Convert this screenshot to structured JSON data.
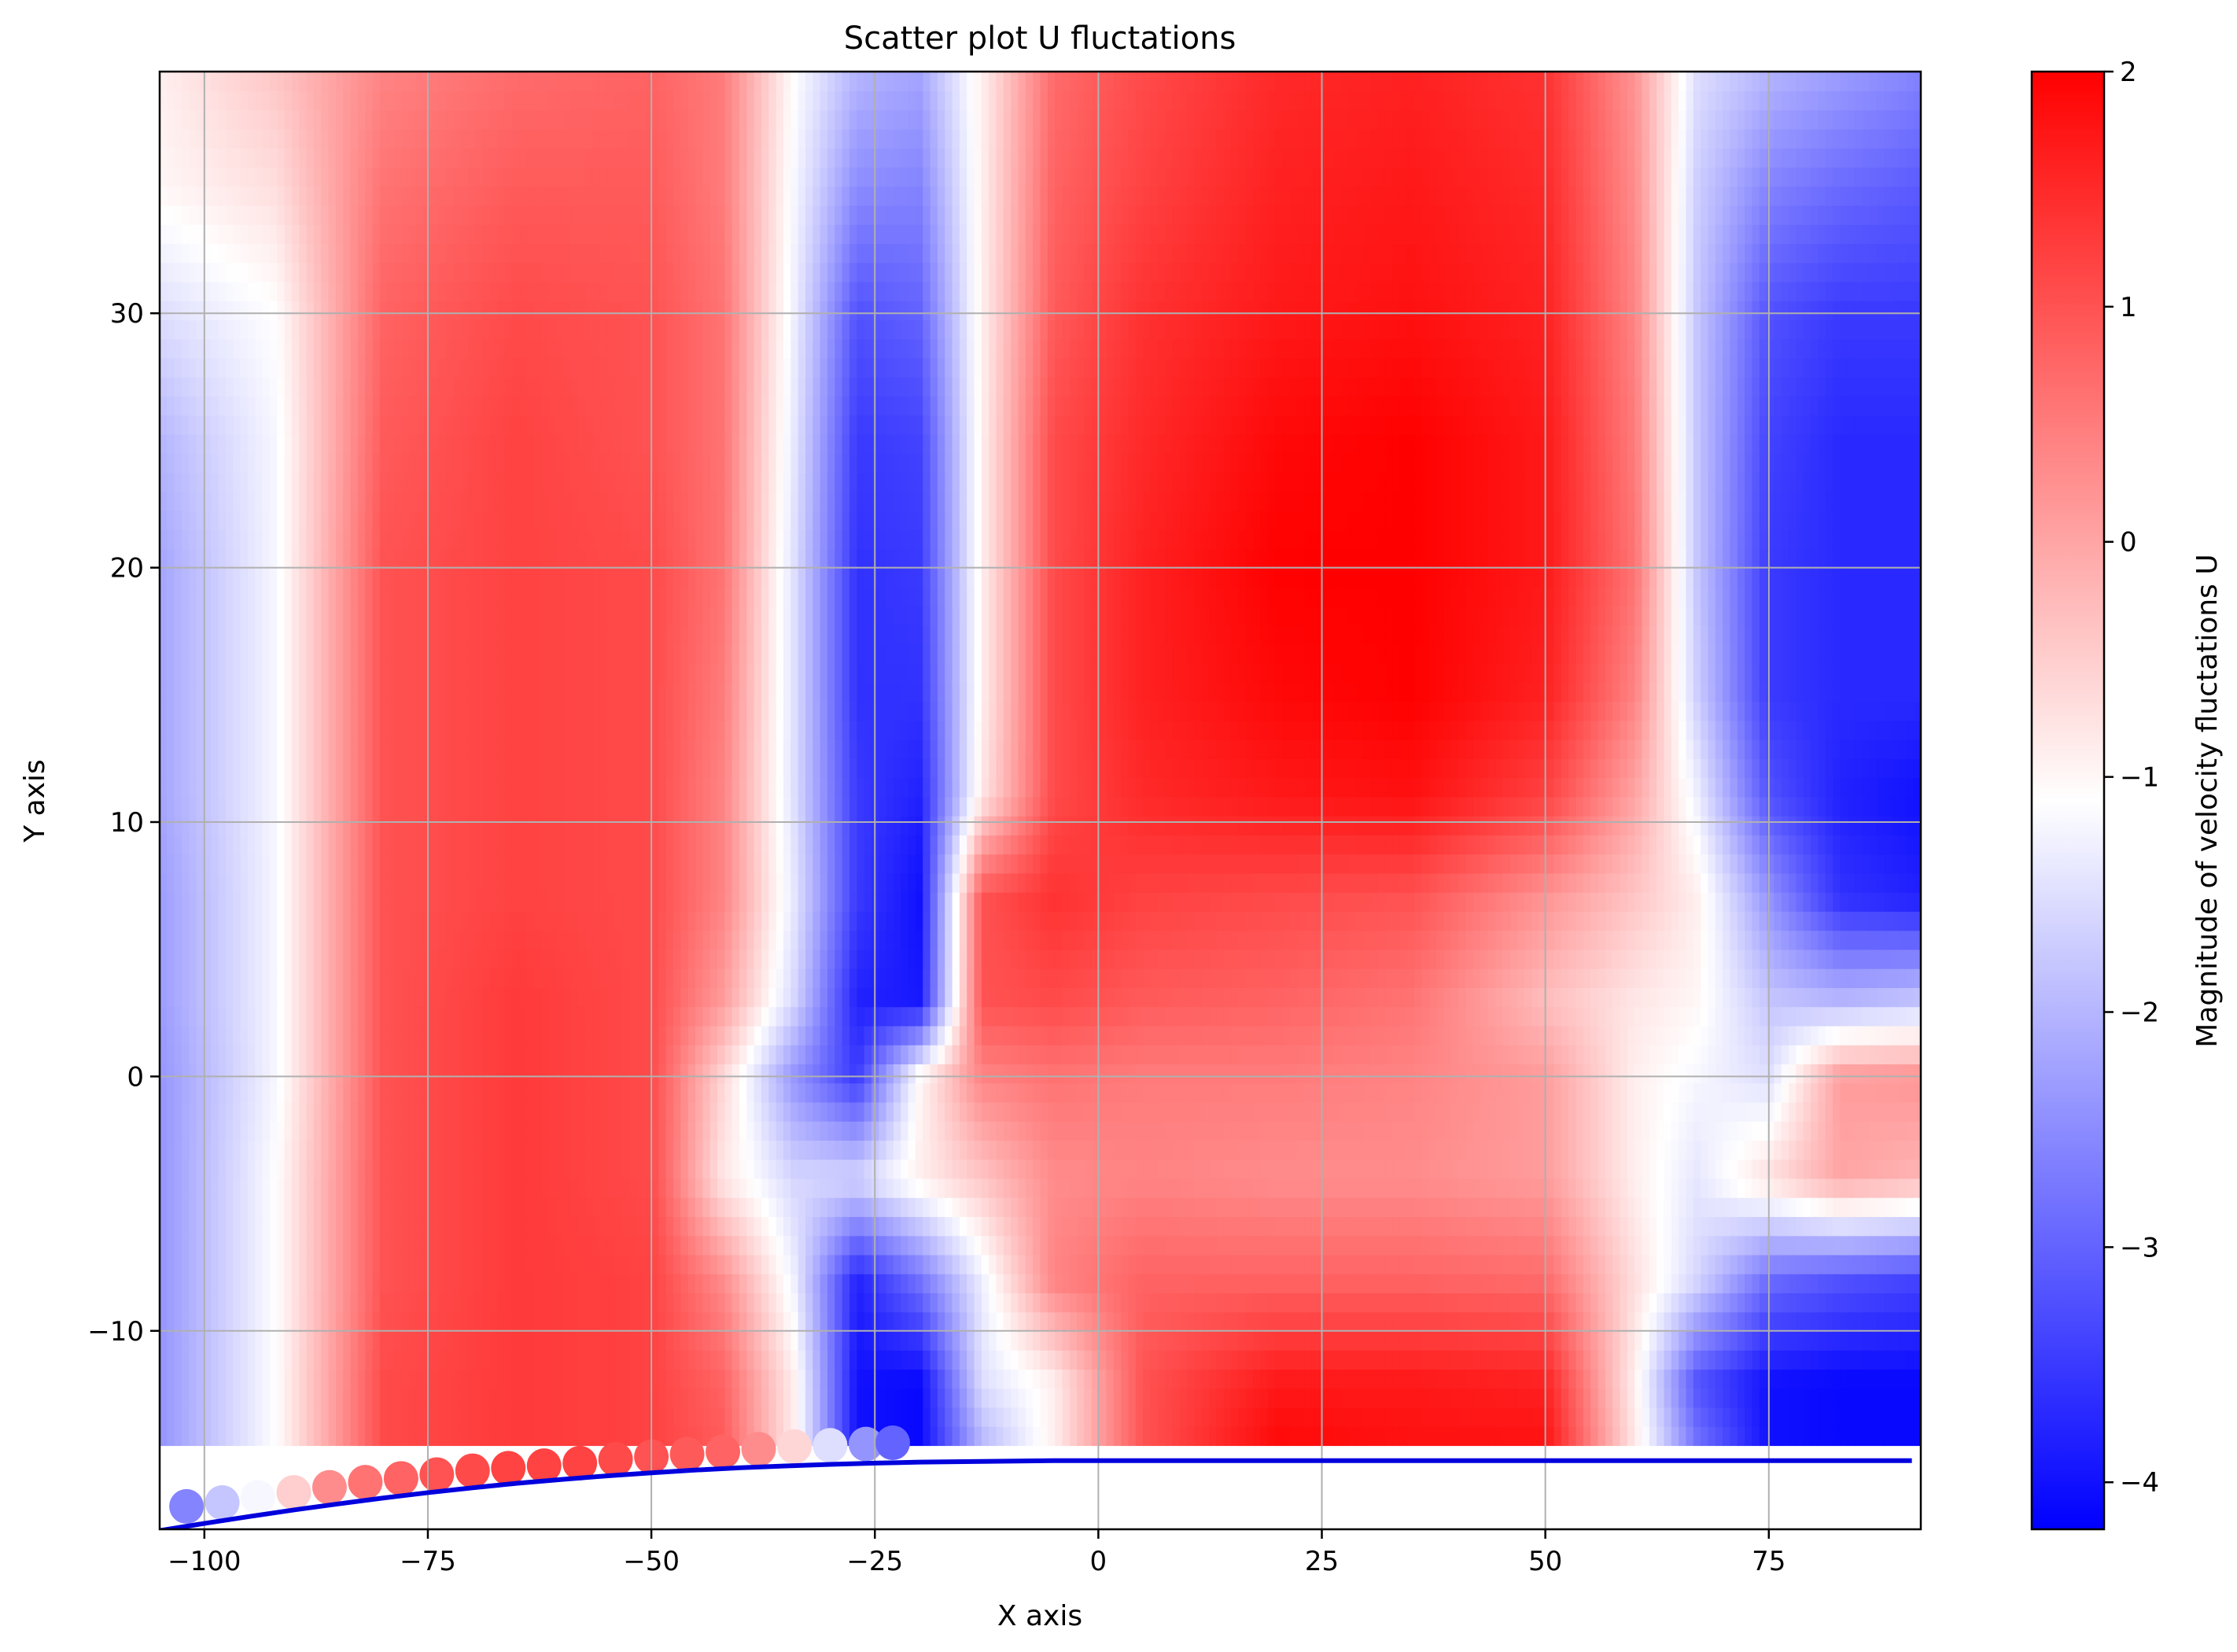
{
  "chart_data": {
    "type": "heatmap",
    "title": "Scatter plot U fluctations",
    "xlabel": "X axis",
    "ylabel": "Y axis",
    "xlim": [
      -105,
      92
    ],
    "ylim": [
      -17.8,
      39.5
    ],
    "x_ticks": [
      -100,
      -75,
      -50,
      -25,
      0,
      25,
      50,
      75
    ],
    "y_ticks": [
      -10,
      0,
      10,
      20,
      30
    ],
    "x_tick_labels": [
      "−100",
      "−75",
      "−50",
      "−25",
      "0",
      "25",
      "50",
      "75"
    ],
    "y_tick_labels": [
      "−10",
      "0",
      "10",
      "20",
      "30"
    ],
    "grid": true,
    "colormap": "bwr",
    "colorbar": {
      "label": "Magnitude of velocity fluctations U",
      "range": [
        -4.2,
        2.0
      ],
      "ticks": [
        2,
        1,
        0,
        -1,
        -2,
        -3,
        -4
      ],
      "tick_labels": [
        "2",
        "1",
        "0",
        "−1",
        "−2",
        "−3",
        "−4"
      ]
    },
    "field": {
      "x": [
        -105,
        -92,
        -80,
        -65,
        -50,
        -42,
        -34,
        -27,
        -20,
        -13,
        -5,
        5,
        20,
        35,
        50,
        60,
        67,
        75,
        83,
        92
      ],
      "y": [
        -14.5,
        -12,
        -8,
        -4,
        0,
        3,
        7,
        11,
        15,
        20,
        25,
        30,
        35,
        39.5
      ],
      "u": [
        [
          -2.4,
          -1.1,
          1.1,
          1.3,
          1.2,
          0.9,
          -0.9,
          -4.0,
          -4.1,
          -2.0,
          -0.9,
          1.0,
          1.9,
          1.8,
          1.8,
          -0.8,
          -2.8,
          -4.0,
          -4.1,
          -4.1
        ],
        [
          -2.4,
          -1.1,
          1.1,
          1.3,
          1.2,
          0.8,
          -0.9,
          -4.0,
          -4.1,
          -1.5,
          -0.9,
          1.0,
          1.7,
          1.7,
          1.6,
          -0.9,
          -3.2,
          -4.0,
          -4.1,
          -4.1
        ],
        [
          -2.4,
          -1.1,
          1.0,
          1.3,
          1.2,
          0.3,
          -1.3,
          -3.8,
          -2.8,
          -1.3,
          0.4,
          0.8,
          0.8,
          0.8,
          0.7,
          -0.7,
          -1.6,
          -2.9,
          -3.2,
          -3.4
        ],
        [
          -2.4,
          -1.1,
          1.0,
          1.3,
          1.1,
          -0.8,
          -1.6,
          -1.6,
          -0.9,
          -0.4,
          0.3,
          0.4,
          0.3,
          0.3,
          0.1,
          -0.9,
          -1.4,
          -0.7,
          0.0,
          -0.2
        ],
        [
          -2.4,
          -1.2,
          1.0,
          1.3,
          1.1,
          -0.6,
          -2.4,
          -3.5,
          -1.0,
          0.4,
          0.6,
          0.5,
          0.5,
          0.4,
          0.1,
          -0.9,
          -1.2,
          -1.5,
          0.1,
          0.2
        ],
        [
          -2.3,
          -1.2,
          1.0,
          1.3,
          1.1,
          0.1,
          -1.6,
          -3.8,
          -3.9,
          1.0,
          1.1,
          0.9,
          0.8,
          0.6,
          -0.3,
          -0.8,
          -1.0,
          -1.8,
          -2.0,
          -1.8
        ],
        [
          -2.3,
          -1.2,
          1.0,
          1.2,
          1.1,
          0.4,
          -1.4,
          -3.5,
          -4.0,
          1.0,
          1.4,
          1.2,
          1.1,
          1.0,
          0.2,
          -0.4,
          -0.9,
          -2.4,
          -3.6,
          -3.8
        ],
        [
          -2.2,
          -1.2,
          1.0,
          1.2,
          1.1,
          0.4,
          -1.5,
          -3.5,
          -3.8,
          -0.8,
          1.1,
          1.5,
          1.7,
          1.8,
          1.2,
          0.0,
          -1.3,
          -3.2,
          -3.8,
          -4.0
        ],
        [
          -2.2,
          -1.2,
          1.0,
          1.2,
          1.1,
          0.5,
          -1.5,
          -3.6,
          -3.6,
          -0.9,
          1.1,
          1.6,
          1.9,
          2.0,
          1.6,
          0.4,
          -1.7,
          -3.5,
          -3.7,
          -3.7
        ],
        [
          -2.2,
          -1.2,
          1.0,
          1.2,
          1.1,
          0.6,
          -1.5,
          -3.6,
          -3.5,
          -0.9,
          1.1,
          1.6,
          2.0,
          2.0,
          1.7,
          0.6,
          -1.8,
          -3.5,
          -3.7,
          -3.7
        ],
        [
          -2.0,
          -1.2,
          0.9,
          1.2,
          1.0,
          0.6,
          -1.4,
          -3.5,
          -3.4,
          -0.9,
          1.1,
          1.5,
          1.9,
          2.0,
          1.7,
          0.5,
          -1.8,
          -3.4,
          -3.7,
          -3.7
        ],
        [
          -1.5,
          -1.1,
          0.8,
          1.1,
          1.0,
          0.6,
          -1.3,
          -3.2,
          -3.0,
          -0.9,
          0.9,
          1.4,
          1.7,
          1.8,
          1.6,
          0.4,
          -1.8,
          -3.2,
          -3.5,
          -3.5
        ],
        [
          -1.0,
          -0.7,
          0.6,
          0.9,
          0.9,
          0.5,
          -1.2,
          -2.5,
          -2.6,
          -0.9,
          0.8,
          1.2,
          1.6,
          1.7,
          1.5,
          0.3,
          -1.7,
          -2.6,
          -2.9,
          -3.1
        ],
        [
          -0.9,
          -0.4,
          0.4,
          0.7,
          0.8,
          0.5,
          -1.1,
          -2.0,
          -2.2,
          -0.9,
          0.7,
          1.1,
          1.5,
          1.6,
          1.4,
          0.2,
          -1.5,
          -2.0,
          -2.3,
          -2.6
        ]
      ]
    },
    "wall_curve": {
      "color": "#0000dd",
      "x": [
        -105,
        -100,
        -95,
        -90,
        -85,
        -80,
        -75,
        -70,
        -65,
        -60,
        -55,
        -50,
        -45,
        -40,
        -35,
        -30,
        -25,
        -20,
        -15,
        -10,
        -5,
        0,
        50,
        91
      ],
      "y": [
        -17.85,
        -17.57,
        -17.3,
        -17.04,
        -16.8,
        -16.57,
        -16.36,
        -16.17,
        -15.99,
        -15.84,
        -15.7,
        -15.58,
        -15.47,
        -15.38,
        -15.31,
        -15.25,
        -15.2,
        -15.16,
        -15.14,
        -15.12,
        -15.1,
        -15.1,
        -15.1,
        -15.1
      ]
    },
    "wall_markers": {
      "x": [
        -102,
        -98,
        -94,
        -90,
        -86,
        -82,
        -78,
        -74,
        -70,
        -66,
        -62,
        -58,
        -54,
        -50,
        -46,
        -42,
        -38,
        -34,
        -30,
        -26,
        -23
      ],
      "y": [
        -16.9,
        -16.75,
        -16.55,
        -16.35,
        -16.15,
        -15.95,
        -15.8,
        -15.65,
        -15.5,
        -15.4,
        -15.3,
        -15.2,
        -15.05,
        -14.95,
        -14.85,
        -14.75,
        -14.65,
        -14.55,
        -14.5,
        -14.45,
        -14.4
      ],
      "u": [
        -2.6,
        -1.8,
        -1.2,
        -0.5,
        0.3,
        0.6,
        0.8,
        1.0,
        1.1,
        1.2,
        1.2,
        1.2,
        1.1,
        1.0,
        0.9,
        0.8,
        0.3,
        -0.6,
        -1.5,
        -2.4,
        -3.0
      ]
    }
  }
}
